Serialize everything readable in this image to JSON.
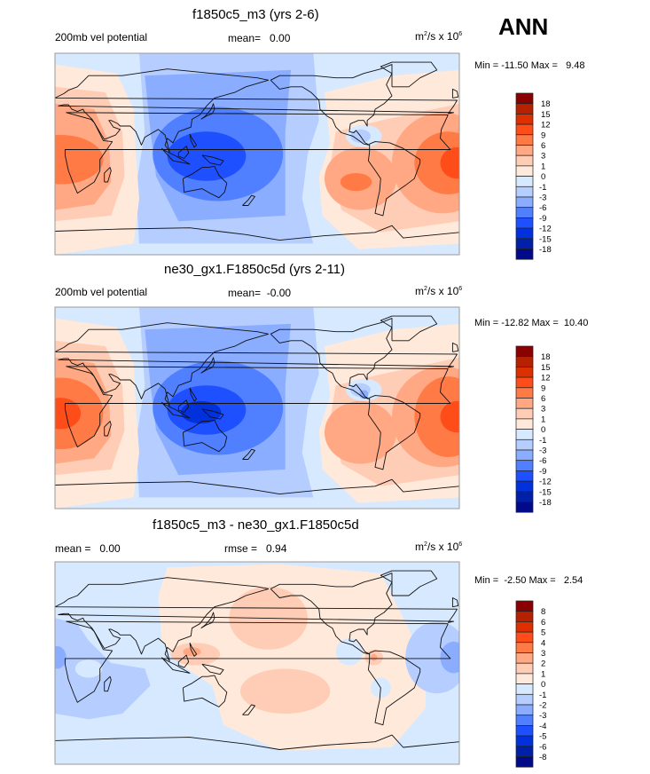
{
  "season": "ANN",
  "chart_data": [
    {
      "type": "heatmap",
      "subtype": "global filled-contour map (cylindrical equidistant, centered 0°E → 360°)",
      "title": "f1850c5_m3 (yrs 2-6)",
      "left_label": "200mb vel potential",
      "center_label": "mean=   0.00",
      "units": {
        "base": "m",
        "exp1": "2",
        "mid": "/s x 10",
        "exp2": "6"
      },
      "min_label": "Min = -11.50 Max =   9.48",
      "min": -11.5,
      "max": 9.48,
      "mean": 0.0,
      "levels": [
        "18",
        "15",
        "12",
        "9",
        "6",
        "3",
        "1",
        "0",
        "-1",
        "-3",
        "-6",
        "-9",
        "-12",
        "-15",
        "-18"
      ],
      "features": [
        {
          "name": "eastern-hemisphere-negative-center",
          "region": "Maritime Continent / west Pacific",
          "level_band": "-12 to -9"
        },
        {
          "name": "africa-positive-center",
          "region": "West Africa / Atlantic",
          "level_band": "6 to 9"
        },
        {
          "name": "atlantic-positive-center",
          "region": "Tropical Atlantic off Africa",
          "level_band": "9 to 12"
        },
        {
          "name": "east-pacific-positive-center",
          "region": "Southeast Pacific off South America",
          "level_band": "6 to 9"
        },
        {
          "name": "central-america-negative-pocket",
          "region": "Gulf of Mexico / Caribbean",
          "level_band": "-3 to -1"
        }
      ]
    },
    {
      "type": "heatmap",
      "subtype": "global filled-contour map (cylindrical equidistant, centered 0°E → 360°)",
      "title": "ne30_gx1.F1850c5d (yrs 2-11)",
      "left_label": "200mb vel potential",
      "center_label": "mean=  -0.00",
      "units": {
        "base": "m",
        "exp1": "2",
        "mid": "/s x 10",
        "exp2": "6"
      },
      "min_label": "Min = -12.82 Max =  10.40",
      "min": -12.82,
      "max": 10.4,
      "mean": -0.0,
      "levels": [
        "18",
        "15",
        "12",
        "9",
        "6",
        "3",
        "1",
        "0",
        "-1",
        "-3",
        "-6",
        "-9",
        "-12",
        "-15",
        "-18"
      ],
      "features": [
        {
          "name": "eastern-hemisphere-negative-center",
          "region": "Maritime Continent / west Pacific",
          "level_band": "-12 to -15"
        },
        {
          "name": "africa-positive-center",
          "region": "West Africa",
          "level_band": "9 to 12"
        },
        {
          "name": "atlantic-positive-center",
          "region": "Tropical Atlantic off Africa",
          "level_band": "9 to 12"
        },
        {
          "name": "east-pacific-positive-center",
          "region": "Southeast Pacific off South America",
          "level_band": "3 to 6"
        },
        {
          "name": "central-america-negative-pocket",
          "region": "Central America",
          "level_band": "-6 to -3"
        }
      ]
    },
    {
      "type": "heatmap",
      "subtype": "global filled-contour difference map",
      "title": "f1850c5_m3 - ne30_gx1.F1850c5d",
      "left_label": "mean =   0.00",
      "center_label": "rmse =   0.94",
      "units": {
        "base": "m",
        "exp1": "2",
        "mid": "/s x 10",
        "exp2": "6"
      },
      "min_label": "Min =  -2.50 Max =   2.54",
      "min": -2.5,
      "max": 2.54,
      "mean": 0.0,
      "rmse": 0.94,
      "levels": [
        "8",
        "6",
        "5",
        "4",
        "3",
        "2",
        "1",
        "0",
        "-1",
        "-2",
        "-3",
        "-4",
        "-5",
        "-6",
        "-8"
      ],
      "features": [
        {
          "name": "africa-negative-region",
          "region": "Africa / Indian Ocean",
          "level_band": "-2 to -1"
        },
        {
          "name": "west-africa-negative-center",
          "region": "Gulf of Guinea / Atlantic",
          "level_band": "-3 to -2"
        },
        {
          "name": "pacific-positive-region",
          "region": "Pacific basin",
          "level_band": "0 to 1"
        },
        {
          "name": "north-pacific-positive-lobe",
          "region": "North central Pacific",
          "level_band": "1 to 2"
        },
        {
          "name": "south-pacific-positive-lobe",
          "region": "South central Pacific",
          "level_band": "1 to 2"
        },
        {
          "name": "philippines-positive-peak",
          "region": "Philippines",
          "level_band": "2 to 3"
        },
        {
          "name": "colombia-positive-peak",
          "region": "Northwest South America",
          "level_band": "2 to 3"
        }
      ]
    }
  ],
  "colorbar_colors": [
    "#8b0000",
    "#b62100",
    "#dc3000",
    "#ff4d1a",
    "#ff7a45",
    "#ffa883",
    "#ffcdb6",
    "#ffe9db",
    "#d7e9ff",
    "#b5cdff",
    "#8aadff",
    "#507fff",
    "#1e50ff",
    "#0031dd",
    "#0020a8",
    "#000a8a"
  ]
}
